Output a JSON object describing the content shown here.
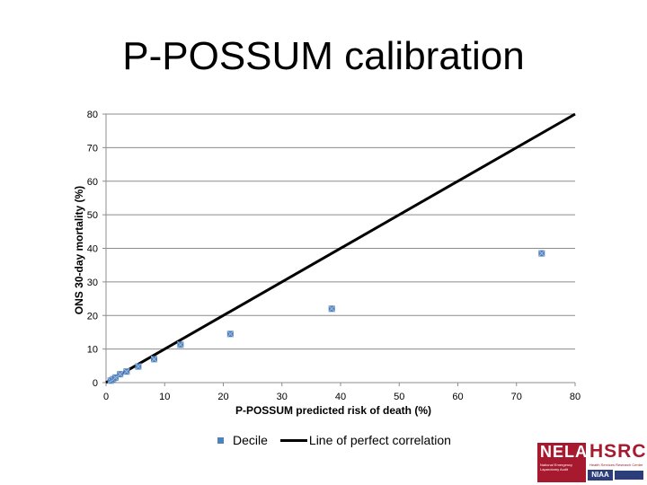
{
  "slide": {
    "title": "P-POSSUM calibration"
  },
  "chart_data": {
    "type": "scatter",
    "xlabel": "P-POSSUM predicted risk of death (%)",
    "ylabel": "ONS 30-day mortality (%)",
    "xlim": [
      0,
      80
    ],
    "ylim": [
      0,
      80
    ],
    "x_ticks": [
      0,
      10,
      20,
      30,
      40,
      50,
      60,
      70,
      80
    ],
    "y_ticks": [
      0,
      10,
      20,
      30,
      40,
      50,
      60,
      70,
      80
    ],
    "grid": "horizontal",
    "legend_position": "bottom",
    "series": [
      {
        "name": "Decile",
        "kind": "scatter",
        "color": "#4f81bd",
        "points": [
          [
            0.8,
            0.6
          ],
          [
            1.2,
            1.0
          ],
          [
            1.6,
            1.5
          ],
          [
            2.4,
            2.5
          ],
          [
            3.5,
            3.3
          ],
          [
            5.5,
            4.8
          ],
          [
            8.2,
            7.0
          ],
          [
            12.7,
            11.3
          ],
          [
            21.2,
            14.5
          ],
          [
            38.5,
            22.0
          ],
          [
            74.3,
            38.5
          ]
        ]
      },
      {
        "name": "Line of perfect correlation",
        "kind": "line",
        "color": "#000000",
        "points": [
          [
            0,
            0
          ],
          [
            80,
            80
          ]
        ]
      }
    ]
  },
  "logos": {
    "nela": "NELA",
    "nela_sub": "National Emergency Laparotomy Audit",
    "hsrc": "HSRC",
    "hsrc_sub": "Health Services Research Centre",
    "niaa": "NIAA"
  }
}
